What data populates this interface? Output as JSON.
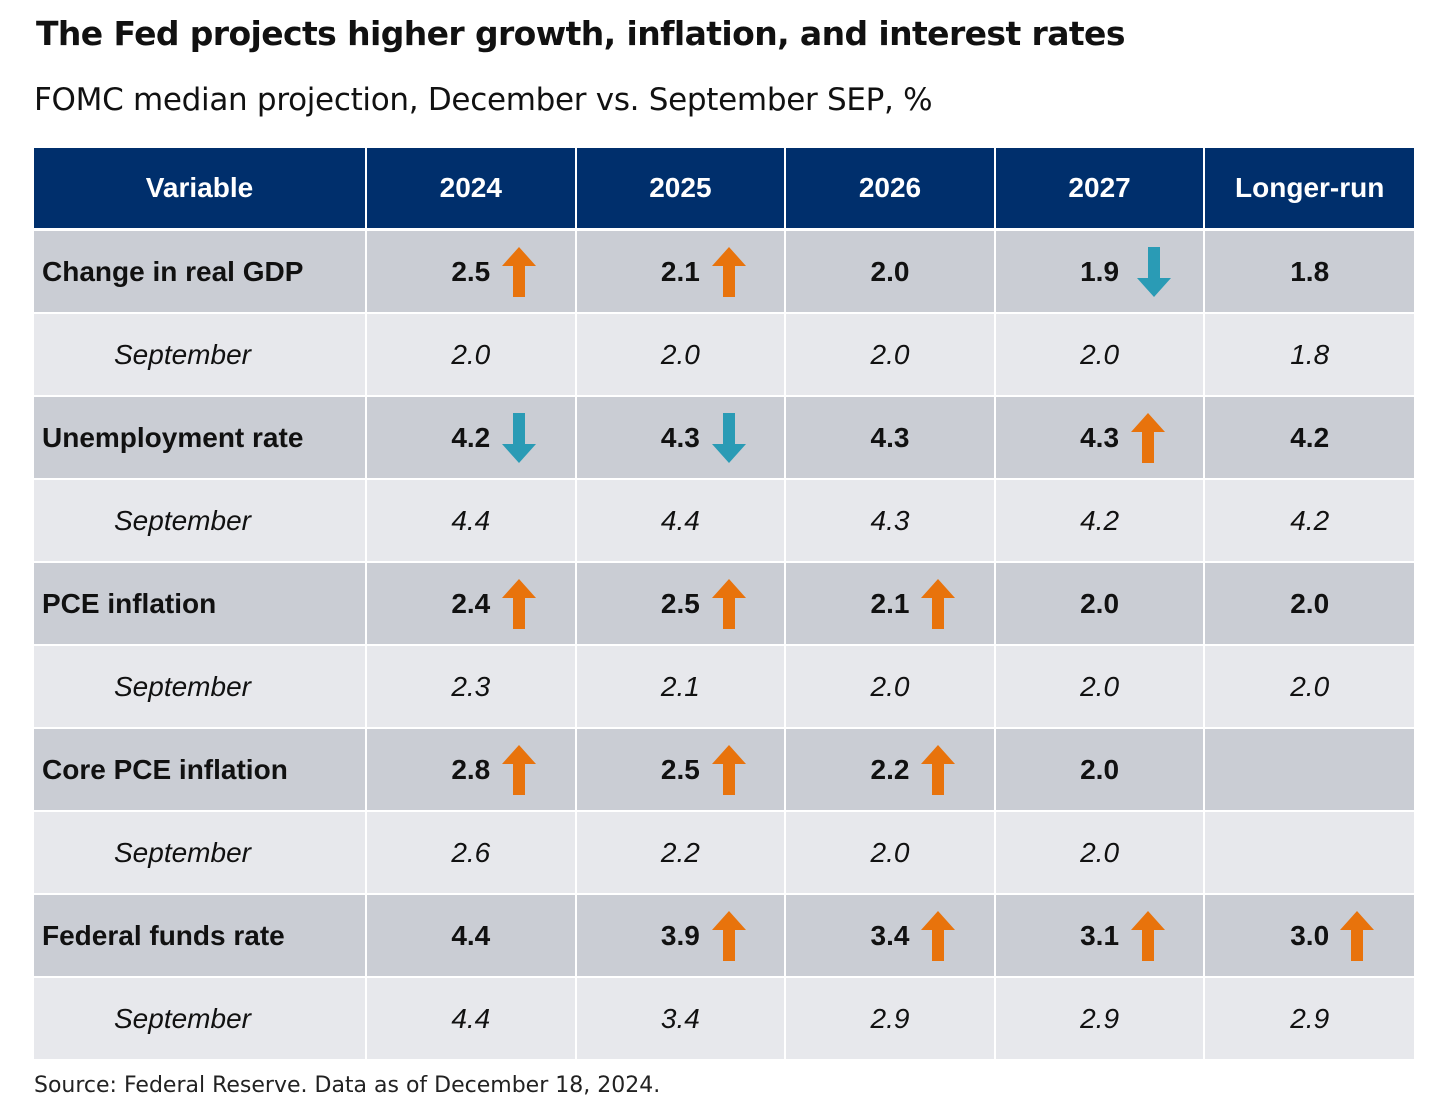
{
  "title": "The Fed projects higher growth, inflation, and interest rates",
  "subtitle": "FOMC median projection, December vs. September SEP, %",
  "source": "Source: Federal Reserve. Data as of December 18, 2024.",
  "colors": {
    "header_bg": "#002f6c",
    "up_arrow": "#e8730c",
    "down_arrow": "#2a9bb5",
    "main_row": "#cacdd4",
    "sep_row": "#e7e8ec"
  },
  "chart_data": {
    "type": "table",
    "title": "The Fed projects higher growth, inflation, and interest rates",
    "subtitle": "FOMC median projection, December vs. September SEP, %",
    "columns": [
      "Variable",
      "2024",
      "2025",
      "2026",
      "2027",
      "Longer-run"
    ],
    "rows": [
      {
        "label": "Change in real GDP",
        "kind": "main",
        "values": [
          "2.5",
          "2.1",
          "2.0",
          "1.9",
          "1.8"
        ],
        "arrows": [
          "up",
          "up",
          "",
          "down",
          ""
        ]
      },
      {
        "label": "September",
        "kind": "sep",
        "values": [
          "2.0",
          "2.0",
          "2.0",
          "2.0",
          "1.8"
        ],
        "arrows": [
          "",
          "",
          "",
          "",
          ""
        ]
      },
      {
        "label": "Unemployment rate",
        "kind": "main",
        "values": [
          "4.2",
          "4.3",
          "4.3",
          "4.3",
          "4.2"
        ],
        "arrows": [
          "down",
          "down",
          "",
          "up",
          ""
        ]
      },
      {
        "label": "September",
        "kind": "sep",
        "values": [
          "4.4",
          "4.4",
          "4.3",
          "4.2",
          "4.2"
        ],
        "arrows": [
          "",
          "",
          "",
          "",
          ""
        ]
      },
      {
        "label": "PCE inflation",
        "kind": "main",
        "values": [
          "2.4",
          "2.5",
          "2.1",
          "2.0",
          "2.0"
        ],
        "arrows": [
          "up",
          "up",
          "up",
          "",
          ""
        ]
      },
      {
        "label": "September",
        "kind": "sep",
        "values": [
          "2.3",
          "2.1",
          "2.0",
          "2.0",
          "2.0"
        ],
        "arrows": [
          "",
          "",
          "",
          "",
          ""
        ]
      },
      {
        "label": "Core PCE inflation",
        "kind": "main",
        "values": [
          "2.8",
          "2.5",
          "2.2",
          "2.0",
          ""
        ],
        "arrows": [
          "up",
          "up",
          "up",
          "",
          ""
        ]
      },
      {
        "label": "September",
        "kind": "sep",
        "values": [
          "2.6",
          "2.2",
          "2.0",
          "2.0",
          ""
        ],
        "arrows": [
          "",
          "",
          "",
          "",
          ""
        ]
      },
      {
        "label": "Federal funds rate",
        "kind": "main",
        "values": [
          "4.4",
          "3.9",
          "3.4",
          "3.1",
          "3.0"
        ],
        "arrows": [
          "",
          "up",
          "up",
          "up",
          "up"
        ]
      },
      {
        "label": "September",
        "kind": "sep",
        "values": [
          "4.4",
          "3.4",
          "2.9",
          "2.9",
          "2.9"
        ],
        "arrows": [
          "",
          "",
          "",
          "",
          ""
        ]
      }
    ]
  }
}
